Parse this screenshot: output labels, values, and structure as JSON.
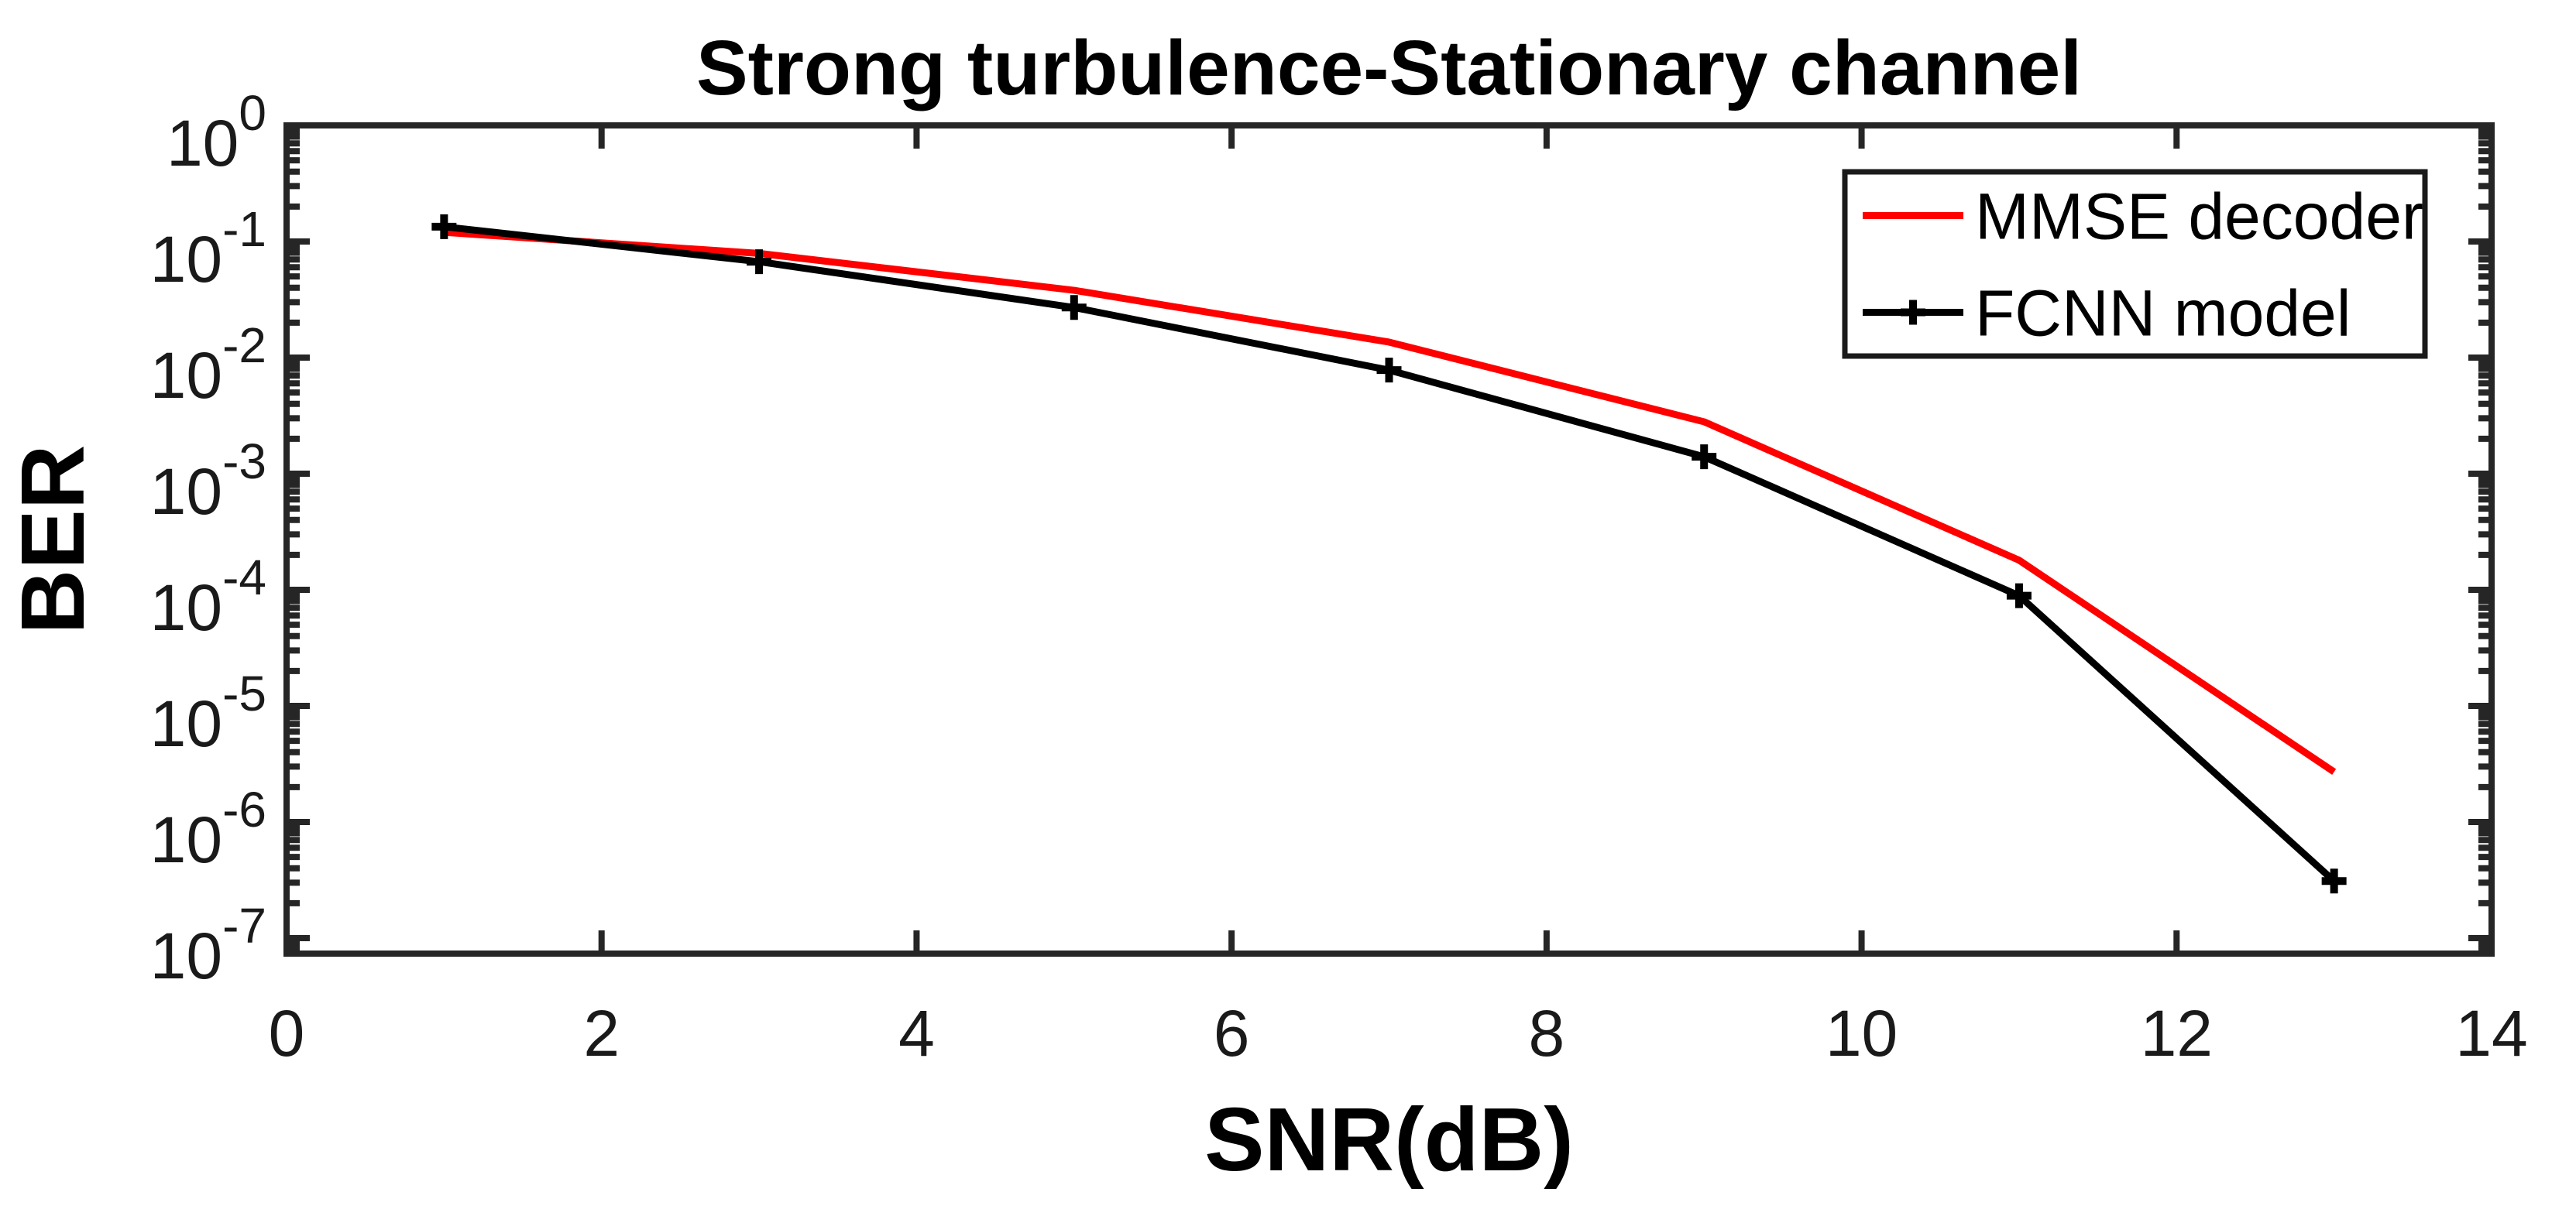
{
  "chart_data": {
    "type": "line",
    "title": "Strong turbulence-Stationary channel",
    "xlabel": "SNR(dB)",
    "ylabel": "BER",
    "xlim": [
      0,
      14
    ],
    "x_ticks": [
      0,
      2,
      4,
      6,
      8,
      10,
      12,
      14
    ],
    "y_scale": "log",
    "y_tick_exponents": [
      0,
      -1,
      -2,
      -3,
      -4,
      -5,
      -6,
      -7
    ],
    "ylim_exponents": [
      -7.13,
      0
    ],
    "grid": false,
    "x": [
      1,
      3,
      5,
      7,
      9,
      11,
      13
    ],
    "series": [
      {
        "name": "MMSE decoder",
        "color": "#ff0000",
        "marker": "none",
        "values": [
          0.12,
          0.079,
          0.038,
          0.0136,
          0.0028,
          0.00018,
          2.7e-06
        ]
      },
      {
        "name": "FCNN model",
        "color": "#000000",
        "marker": "plus",
        "values": [
          0.134,
          0.067,
          0.027,
          0.0078,
          0.0014,
          8.9e-05,
          3.1e-07
        ]
      }
    ],
    "legend": {
      "position": "top-right",
      "entries": [
        "MMSE decoder",
        "FCNN model"
      ]
    },
    "axis_color": "#262626",
    "text_color": "#1a1a1a"
  }
}
